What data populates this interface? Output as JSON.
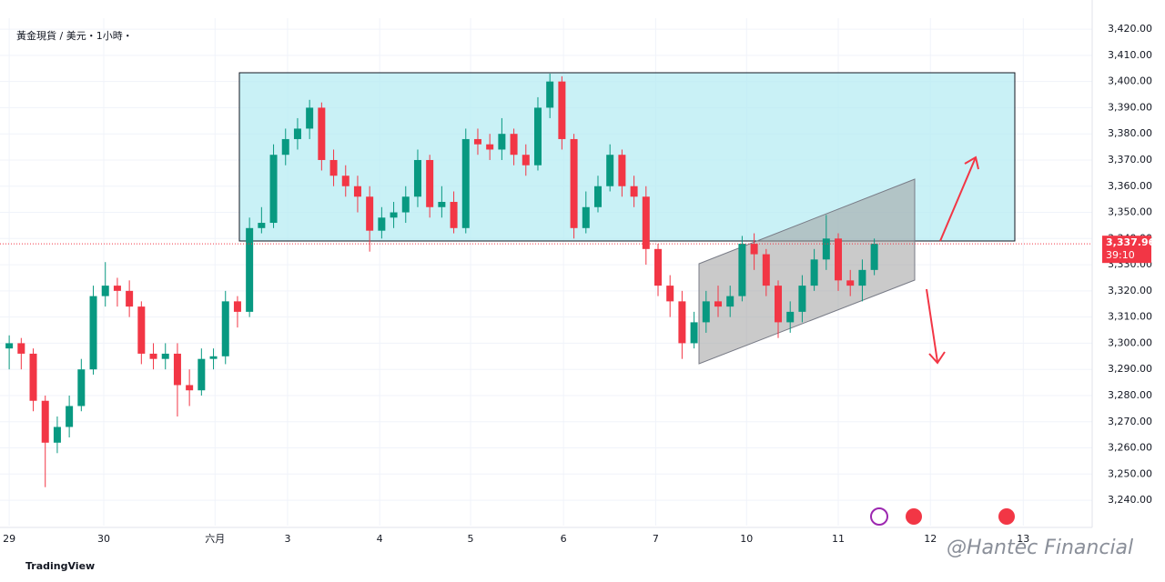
{
  "chart_data": {
    "type": "candlestick",
    "title": "黃金現貨 / 美元・1小時・",
    "x": [
      0,
      3,
      6,
      9,
      12,
      15,
      18,
      21,
      24,
      27,
      30,
      33,
      36,
      39,
      42,
      45,
      48,
      51,
      54,
      57,
      60,
      63,
      66,
      69,
      72,
      75,
      78,
      81,
      84,
      87,
      90,
      93,
      96,
      99,
      102,
      105,
      108,
      111,
      114,
      117,
      120,
      123,
      126,
      129,
      132,
      135,
      138,
      141,
      144,
      147,
      150,
      153,
      156,
      159,
      162,
      165,
      168,
      171,
      174,
      177,
      180,
      183,
      186,
      189,
      192,
      195,
      198,
      201,
      204,
      207,
      210,
      213,
      216
    ],
    "open": [
      3298,
      3300,
      3296,
      3278,
      3262,
      3268,
      3276,
      3290,
      3318,
      3322,
      3320,
      3314,
      3296,
      3294,
      3296,
      3284,
      3282,
      3294,
      3295,
      3316,
      3312,
      3344,
      3346,
      3372,
      3378,
      3382,
      3390,
      3370,
      3364,
      3360,
      3356,
      3343,
      3348,
      3350,
      3356,
      3370,
      3352,
      3354,
      3344,
      3378,
      3376,
      3374,
      3380,
      3372,
      3368,
      3390,
      3400,
      3378,
      3344,
      3352,
      3360,
      3372,
      3360,
      3356,
      3336,
      3322,
      3316,
      3300,
      3308,
      3316,
      3314,
      3318,
      3338,
      3334,
      3322,
      3308,
      3312,
      3322,
      3332,
      3340,
      3324,
      3322,
      3328
    ],
    "high": [
      3303,
      3302,
      3298,
      3280,
      3272,
      3280,
      3294,
      3322,
      3331,
      3325,
      3324,
      3316,
      3300,
      3300,
      3300,
      3290,
      3298,
      3298,
      3320,
      3318,
      3348,
      3352,
      3376,
      3382,
      3386,
      3393,
      3392,
      3374,
      3368,
      3364,
      3360,
      3352,
      3354,
      3360,
      3374,
      3372,
      3360,
      3358,
      3382,
      3382,
      3380,
      3386,
      3382,
      3376,
      3394,
      3403,
      3402,
      3380,
      3358,
      3364,
      3376,
      3374,
      3364,
      3360,
      3338,
      3326,
      3320,
      3312,
      3320,
      3322,
      3322,
      3341,
      3342,
      3336,
      3324,
      3316,
      3326,
      3336,
      3349,
      3342,
      3328,
      3332,
      3340
    ],
    "low": [
      3290,
      3290,
      3274,
      3245,
      3258,
      3264,
      3274,
      3288,
      3314,
      3314,
      3310,
      3292,
      3290,
      3290,
      3272,
      3276,
      3280,
      3290,
      3292,
      3306,
      3310,
      3342,
      3344,
      3368,
      3374,
      3378,
      3366,
      3360,
      3356,
      3350,
      3335,
      3340,
      3344,
      3346,
      3352,
      3348,
      3348,
      3342,
      3342,
      3372,
      3370,
      3370,
      3368,
      3364,
      3366,
      3386,
      3374,
      3340,
      3342,
      3350,
      3358,
      3356,
      3352,
      3330,
      3318,
      3310,
      3294,
      3298,
      3304,
      3310,
      3310,
      3316,
      3328,
      3318,
      3302,
      3304,
      3308,
      3320,
      3328,
      3320,
      3318,
      3316,
      3326
    ],
    "close": [
      3300,
      3296,
      3278,
      3262,
      3268,
      3276,
      3290,
      3318,
      3322,
      3320,
      3314,
      3296,
      3294,
      3296,
      3284,
      3282,
      3294,
      3295,
      3316,
      3312,
      3344,
      3346,
      3372,
      3378,
      3382,
      3390,
      3370,
      3364,
      3360,
      3356,
      3343,
      3348,
      3350,
      3356,
      3370,
      3352,
      3354,
      3344,
      3378,
      3376,
      3374,
      3380,
      3372,
      3368,
      3390,
      3400,
      3378,
      3344,
      3352,
      3360,
      3372,
      3360,
      3356,
      3336,
      3322,
      3316,
      3300,
      3308,
      3316,
      3314,
      3318,
      3338,
      3334,
      3322,
      3308,
      3312,
      3322,
      3332,
      3340,
      3324,
      3322,
      3328,
      3338
    ],
    "up_color": "#089981",
    "down_color": "#f23645",
    "xlim": [
      -2.3,
      270.4
    ],
    "xticks": [
      {
        "value": 0,
        "label": "29"
      },
      {
        "value": 23.6,
        "label": "30"
      },
      {
        "value": 51.4,
        "label": "六月"
      },
      {
        "value": 69.5,
        "label": "3"
      },
      {
        "value": 92.5,
        "label": "4"
      },
      {
        "value": 115.2,
        "label": "5"
      },
      {
        "value": 138.4,
        "label": "6"
      },
      {
        "value": 161.4,
        "label": "7"
      },
      {
        "value": 184.1,
        "label": "10"
      },
      {
        "value": 207,
        "label": "11"
      },
      {
        "value": 230,
        "label": "12"
      },
      {
        "value": 253.2,
        "label": "13"
      }
    ],
    "ylim": [
      3230.3,
      3424.2
    ],
    "yticks": [
      {
        "value": 3240,
        "label": "3,240.00"
      },
      {
        "value": 3250,
        "label": "3,250.00"
      },
      {
        "value": 3260,
        "label": "3,260.00"
      },
      {
        "value": 3270,
        "label": "3,270.00"
      },
      {
        "value": 3280,
        "label": "3,280.00"
      },
      {
        "value": 3290,
        "label": "3,290.00"
      },
      {
        "value": 3300,
        "label": "3,300.00"
      },
      {
        "value": 3310,
        "label": "3,310.00"
      },
      {
        "value": 3320,
        "label": "3,320.00"
      },
      {
        "value": 3330,
        "label": "3,330.00"
      },
      {
        "value": 3340,
        "label": "3,340.00"
      },
      {
        "value": 3350,
        "label": "3,350.00"
      },
      {
        "value": 3360,
        "label": "3,360.00"
      },
      {
        "value": 3370,
        "label": "3,370.00"
      },
      {
        "value": 3380,
        "label": "3,380.00"
      },
      {
        "value": 3390,
        "label": "3,390.00"
      },
      {
        "value": 3400,
        "label": "3,400.00"
      },
      {
        "value": 3410,
        "label": "3,410.00"
      },
      {
        "value": 3420,
        "label": "3,420.00"
      }
    ],
    "grid": true,
    "last_price": {
      "value": 3337.96,
      "label": "3,337.96"
    },
    "countdown": "39:10",
    "brand": "TradingView",
    "watermark": "@Hantec Financial"
  }
}
